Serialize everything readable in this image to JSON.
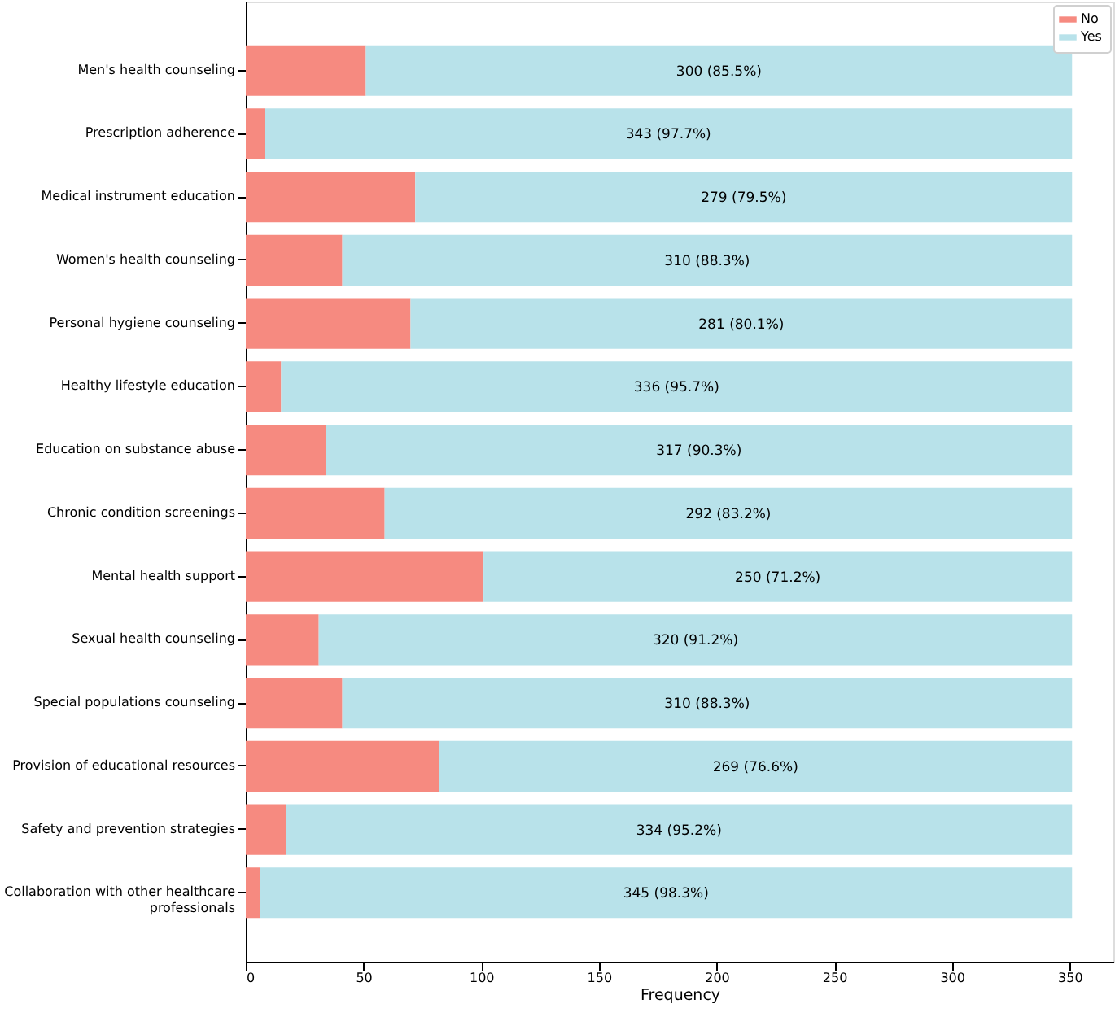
{
  "chart_data": {
    "type": "bar",
    "orientation": "horizontal",
    "stacked": true,
    "xlabel": "Frequency",
    "categories": [
      "Men's health counseling",
      "Prescription adherence",
      "Medical instrument education",
      "Women's health counseling",
      "Personal hygiene counseling",
      "Healthy lifestyle education",
      "Education on substance abuse",
      "Chronic condition screenings",
      "Mental health support",
      "Sexual health counseling",
      "Special populations counseling",
      "Provision of educational resources",
      "Safety and prevention strategies",
      "Collaboration with other healthcare\nprofessionals"
    ],
    "series": [
      {
        "name": "No",
        "color": "#f68a80",
        "values": [
          51,
          8,
          72,
          41,
          70,
          15,
          34,
          59,
          101,
          31,
          41,
          82,
          17,
          6
        ]
      },
      {
        "name": "Yes",
        "color": "#b8e2ea",
        "values": [
          300,
          343,
          279,
          310,
          281,
          336,
          317,
          292,
          250,
          320,
          310,
          269,
          334,
          345
        ],
        "value_labels": [
          "300 (85.5%)",
          "343 (97.7%)",
          "279 (79.5%)",
          "310 (88.3%)",
          "281 (80.1%)",
          "336 (95.7%)",
          "317 (90.3%)",
          "292 (83.2%)",
          "250 (71.2%)",
          "320 (91.2%)",
          "310 (88.3%)",
          "269 (76.6%)",
          "334 (95.2%)",
          "345 (98.3%)"
        ]
      }
    ],
    "xlim": [
      0,
      368.55
    ],
    "xticks": [
      0,
      50,
      100,
      150,
      200,
      250,
      300,
      350
    ],
    "legend": "top right",
    "grid": false
  }
}
